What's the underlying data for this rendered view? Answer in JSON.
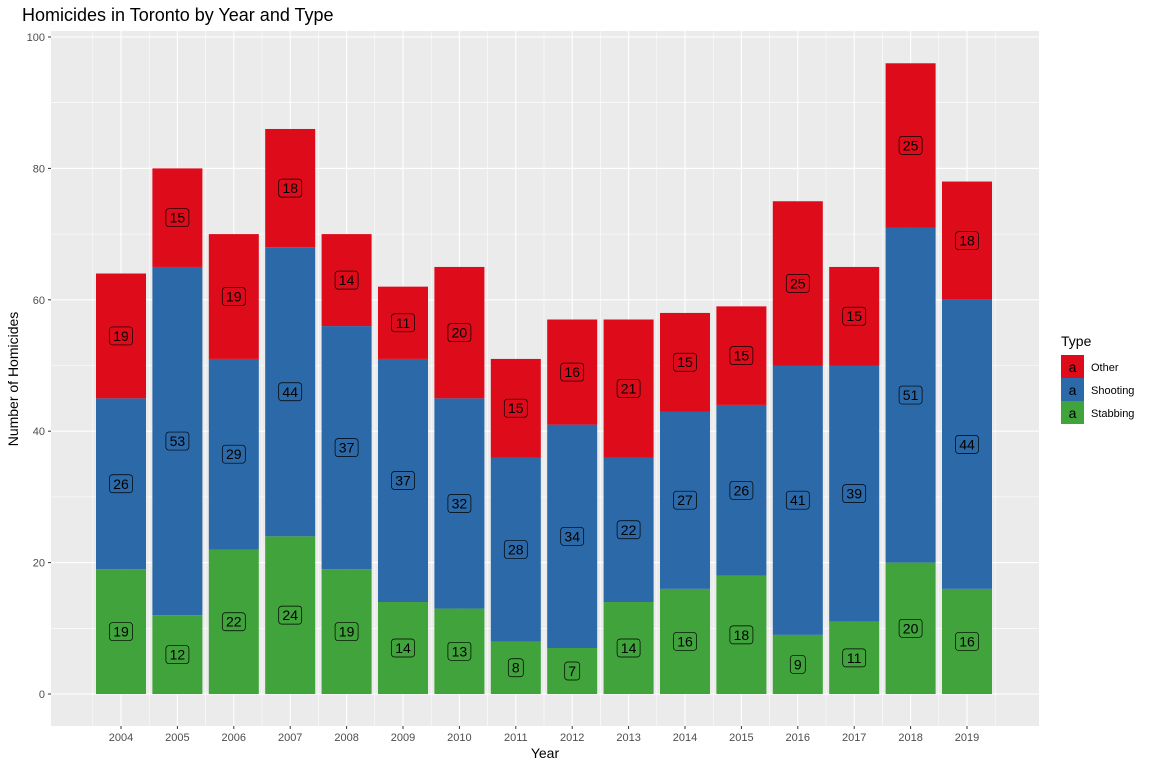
{
  "chart_data": {
    "type": "bar",
    "stacked": true,
    "title": "Homicides in Toronto by Year and Type",
    "xlabel": "Year",
    "ylabel": "Number of Homicides",
    "ylim": [
      0,
      100
    ],
    "yticks": [
      0,
      20,
      40,
      60,
      80,
      100
    ],
    "grid": true,
    "legend": {
      "title": "Type",
      "position": "right"
    },
    "categories": [
      "2004",
      "2005",
      "2006",
      "2007",
      "2008",
      "2009",
      "2010",
      "2011",
      "2012",
      "2013",
      "2014",
      "2015",
      "2016",
      "2017",
      "2018",
      "2019"
    ],
    "series": [
      {
        "name": "Stabbing",
        "color": "#41a33b",
        "values": [
          19,
          12,
          22,
          24,
          19,
          14,
          13,
          8,
          7,
          14,
          16,
          18,
          9,
          11,
          20,
          16
        ]
      },
      {
        "name": "Shooting",
        "color": "#2c69a8",
        "values": [
          26,
          53,
          29,
          44,
          37,
          37,
          32,
          28,
          34,
          22,
          27,
          26,
          41,
          39,
          51,
          44
        ]
      },
      {
        "name": "Other",
        "color": "#de0b1b",
        "values": [
          19,
          15,
          19,
          18,
          14,
          11,
          20,
          15,
          16,
          21,
          15,
          15,
          25,
          15,
          25,
          18
        ]
      }
    ],
    "legend_order": [
      "Other",
      "Shooting",
      "Stabbing"
    ],
    "legend_key_glyph": "a"
  }
}
